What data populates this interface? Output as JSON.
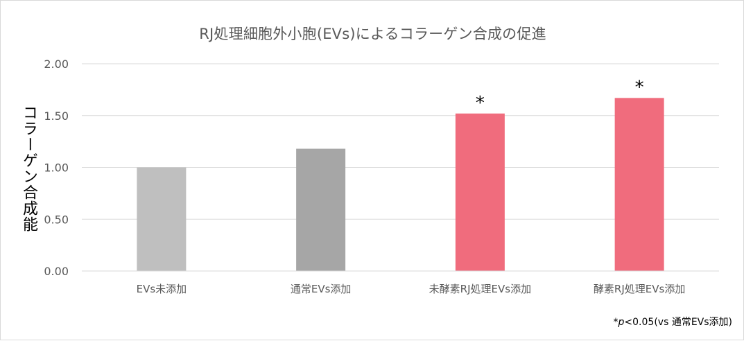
{
  "chart_data": {
    "type": "bar",
    "title": "RJ処理細胞外小胞(EVs)によるコラーゲン合成の促進",
    "ylabel": "コラーゲン合成能",
    "xlabel": "",
    "ylim": [
      0,
      2.0
    ],
    "yticks": [
      "0.00",
      "0.50",
      "1.00",
      "1.50",
      "2.00"
    ],
    "ytick_values": [
      0,
      0.5,
      1.0,
      1.5,
      2.0
    ],
    "grid": true,
    "categories": [
      "EVs未添加",
      "通常EVs添加",
      "未酵素RJ処理EVs添加",
      "酵素RJ処理EVs添加"
    ],
    "values": [
      1.0,
      1.18,
      1.52,
      1.67
    ],
    "colors": [
      "#bfbfbf",
      "#a6a6a6",
      "#f06c7d",
      "#f06c7d"
    ],
    "significance": [
      "",
      "",
      "*",
      "*"
    ]
  },
  "footnote": {
    "star": "*",
    "p": "p",
    "rest": "<0.05(vs 通常EVs添加)"
  }
}
